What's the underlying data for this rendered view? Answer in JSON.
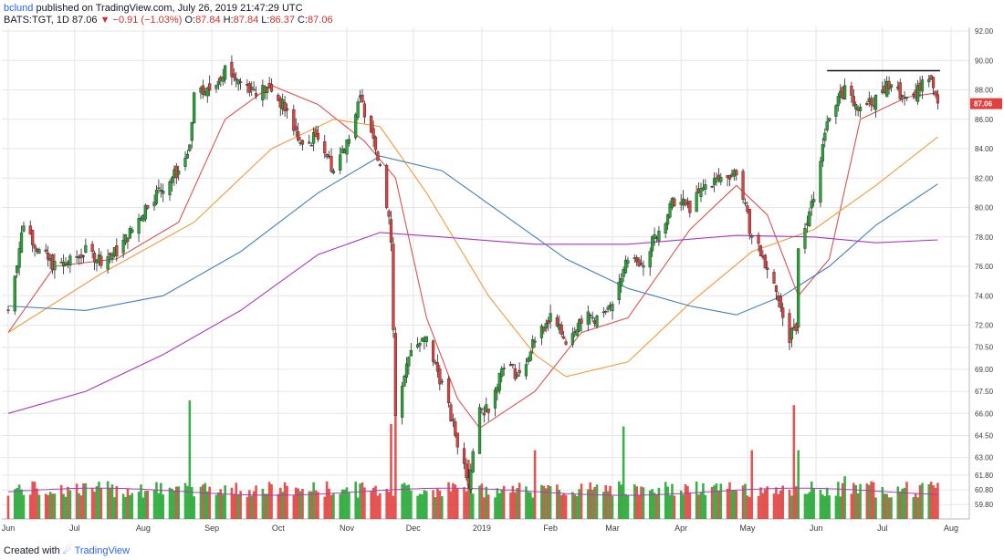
{
  "header": {
    "author": "bclund",
    "published_text": "published on TradingView.com, July 26, 2019 21:47:29 UTC",
    "symbol": "BATS:TGT, 1D",
    "last": "87.06",
    "change_arrow": "▼",
    "change": "−0.91 (−1.03%)",
    "o_label": "O:",
    "o_value": "87.84",
    "h_label": "H:",
    "h_value": "87.84",
    "l_label": "L:",
    "l_value": "86.37",
    "c_label": "C:",
    "c_value": "87.06"
  },
  "footer": {
    "created_with": "Created with",
    "brand": "TradingView"
  },
  "colors": {
    "up": "#26a634",
    "down": "#e0413f",
    "ma_fast": "#d9534f",
    "ma_mid": "#f39a3c",
    "ma_slow": "#3f7fbf",
    "ma_long": "#a936bf",
    "vol_ma": "#a93bb6",
    "grid": "#e6e6e6",
    "axis_text": "#3a3a3a",
    "price_tag": "#e0413f"
  },
  "chart_data": {
    "type": "candlestick",
    "symbol": "BATS:TGT",
    "interval": "1D",
    "y_ticks": [
      "92.00",
      "90.00",
      "88.00",
      "86.00",
      "84.00",
      "82.00",
      "80.00",
      "78.00",
      "76.00",
      "74.00",
      "72.00",
      "70.50",
      "69.00",
      "67.50",
      "66.00",
      "64.50",
      "63.00",
      "61.80",
      "60.80",
      "59.80"
    ],
    "x_ticks": [
      "Jun",
      "Jul",
      "Aug",
      "Sep",
      "Oct",
      "Nov",
      "Dec",
      "2019",
      "Feb",
      "Mar",
      "Apr",
      "May",
      "Jun",
      "Jul",
      "Aug"
    ],
    "last_price_label": "87.06",
    "resistance_level": 89.3,
    "price_anchors": [
      [
        "2018-06-01",
        73.0
      ],
      [
        "2018-06-08",
        79.0
      ],
      [
        "2018-06-15",
        77.0
      ],
      [
        "2018-06-22",
        76.0
      ],
      [
        "2018-06-29",
        76.3
      ],
      [
        "2018-07-06",
        77.0
      ],
      [
        "2018-07-13",
        76.5
      ],
      [
        "2018-07-20",
        77.0
      ],
      [
        "2018-07-27",
        78.5
      ],
      [
        "2018-08-03",
        80.3
      ],
      [
        "2018-08-10",
        81.5
      ],
      [
        "2018-08-17",
        82.5
      ],
      [
        "2018-08-22",
        84.0
      ],
      [
        "2018-08-24",
        87.5
      ],
      [
        "2018-08-31",
        88.0
      ],
      [
        "2018-09-07",
        89.5
      ],
      [
        "2018-09-14",
        88.5
      ],
      [
        "2018-09-21",
        88.0
      ],
      [
        "2018-09-28",
        88.0
      ],
      [
        "2018-10-05",
        86.5
      ],
      [
        "2018-10-12",
        84.0
      ],
      [
        "2018-10-19",
        85.0
      ],
      [
        "2018-10-26",
        82.5
      ],
      [
        "2018-11-02",
        85.0
      ],
      [
        "2018-11-07",
        87.3
      ],
      [
        "2018-11-12",
        85.5
      ],
      [
        "2018-11-16",
        83.0
      ],
      [
        "2018-11-21",
        78.0
      ],
      [
        "2018-11-23",
        66.0
      ],
      [
        "2018-11-30",
        70.5
      ],
      [
        "2018-12-07",
        71.0
      ],
      [
        "2018-12-14",
        68.0
      ],
      [
        "2018-12-21",
        64.0
      ],
      [
        "2018-12-26",
        61.5
      ],
      [
        "2018-12-31",
        66.0
      ],
      [
        "2019-01-04",
        66.5
      ],
      [
        "2019-01-11",
        69.5
      ],
      [
        "2019-01-18",
        68.5
      ],
      [
        "2019-01-25",
        71.0
      ],
      [
        "2019-02-01",
        72.5
      ],
      [
        "2019-02-08",
        71.0
      ],
      [
        "2019-02-15",
        72.5
      ],
      [
        "2019-02-22",
        72.5
      ],
      [
        "2019-03-01",
        73.0
      ],
      [
        "2019-03-06",
        76.0
      ],
      [
        "2019-03-15",
        76.5
      ],
      [
        "2019-03-22",
        78.5
      ],
      [
        "2019-03-29",
        80.5
      ],
      [
        "2019-04-05",
        80.0
      ],
      [
        "2019-04-12",
        81.5
      ],
      [
        "2019-04-19",
        82.0
      ],
      [
        "2019-04-26",
        82.5
      ],
      [
        "2019-05-03",
        78.0
      ],
      [
        "2019-05-10",
        76.0
      ],
      [
        "2019-05-15",
        74.0
      ],
      [
        "2019-05-20",
        71.0
      ],
      [
        "2019-05-23",
        72.0
      ],
      [
        "2019-05-24",
        77.0
      ],
      [
        "2019-05-31",
        81.0
      ],
      [
        "2019-06-07",
        86.5
      ],
      [
        "2019-06-14",
        88.0
      ],
      [
        "2019-06-21",
        86.5
      ],
      [
        "2019-06-28",
        87.5
      ],
      [
        "2019-07-05",
        88.5
      ],
      [
        "2019-07-12",
        87.0
      ],
      [
        "2019-07-19",
        88.5
      ],
      [
        "2019-07-24",
        88.5
      ],
      [
        "2019-07-25",
        87.9
      ],
      [
        "2019-07-26",
        87.06
      ]
    ],
    "moving_averages": [
      {
        "key": "ma_fast",
        "points": [
          [
            "2018-06-01",
            71.5
          ],
          [
            "2018-06-22",
            76.0
          ],
          [
            "2018-07-20",
            76.5
          ],
          [
            "2018-08-17",
            79.0
          ],
          [
            "2018-09-07",
            86.0
          ],
          [
            "2018-09-28",
            88.3
          ],
          [
            "2018-10-19",
            87.0
          ],
          [
            "2018-11-09",
            84.5
          ],
          [
            "2018-11-23",
            82.0
          ],
          [
            "2018-12-07",
            72.5
          ],
          [
            "2018-12-21",
            67.0
          ],
          [
            "2018-12-31",
            65.0
          ],
          [
            "2019-01-25",
            67.5
          ],
          [
            "2019-02-15",
            71.5
          ],
          [
            "2019-03-08",
            72.5
          ],
          [
            "2019-04-05",
            78.5
          ],
          [
            "2019-04-26",
            81.5
          ],
          [
            "2019-05-10",
            79.5
          ],
          [
            "2019-05-24",
            74.0
          ],
          [
            "2019-06-07",
            76.5
          ],
          [
            "2019-06-21",
            86.0
          ],
          [
            "2019-07-12",
            87.5
          ],
          [
            "2019-07-26",
            87.8
          ]
        ]
      },
      {
        "key": "ma_mid",
        "points": [
          [
            "2018-06-01",
            71.5
          ],
          [
            "2018-07-13",
            75.5
          ],
          [
            "2018-08-24",
            79.0
          ],
          [
            "2018-09-28",
            84.0
          ],
          [
            "2018-10-26",
            86.0
          ],
          [
            "2018-11-16",
            85.5
          ],
          [
            "2018-12-07",
            81.0
          ],
          [
            "2019-01-04",
            74.0
          ],
          [
            "2019-01-25",
            70.0
          ],
          [
            "2019-02-08",
            68.5
          ],
          [
            "2019-03-08",
            69.5
          ],
          [
            "2019-04-05",
            73.5
          ],
          [
            "2019-05-03",
            77.0
          ],
          [
            "2019-05-31",
            78.5
          ],
          [
            "2019-06-28",
            81.5
          ],
          [
            "2019-07-26",
            84.8
          ]
        ]
      },
      {
        "key": "ma_slow",
        "points": [
          [
            "2018-06-01",
            73.3
          ],
          [
            "2018-07-06",
            73.0
          ],
          [
            "2018-08-10",
            74.0
          ],
          [
            "2018-09-14",
            77.0
          ],
          [
            "2018-10-19",
            81.0
          ],
          [
            "2018-11-16",
            83.5
          ],
          [
            "2018-12-14",
            82.5
          ],
          [
            "2019-01-11",
            79.5
          ],
          [
            "2019-02-08",
            76.5
          ],
          [
            "2019-03-08",
            74.5
          ],
          [
            "2019-04-05",
            73.3
          ],
          [
            "2019-04-26",
            72.7
          ],
          [
            "2019-05-17",
            74.0
          ],
          [
            "2019-06-07",
            76.0
          ],
          [
            "2019-06-28",
            78.8
          ],
          [
            "2019-07-26",
            81.6
          ]
        ]
      },
      {
        "key": "ma_long",
        "points": [
          [
            "2018-06-01",
            66.0
          ],
          [
            "2018-07-06",
            67.5
          ],
          [
            "2018-08-10",
            70.0
          ],
          [
            "2018-09-14",
            73.0
          ],
          [
            "2018-10-19",
            76.8
          ],
          [
            "2018-11-16",
            78.3
          ],
          [
            "2018-12-14",
            78.0
          ],
          [
            "2019-01-25",
            77.5
          ],
          [
            "2019-03-08",
            77.5
          ],
          [
            "2019-04-26",
            78.1
          ],
          [
            "2019-05-31",
            78.0
          ],
          [
            "2019-06-28",
            77.6
          ],
          [
            "2019-07-26",
            77.8
          ]
        ]
      }
    ],
    "volume_spikes": [
      [
        "2018-08-22",
        5.0
      ],
      [
        "2018-11-21",
        4.0
      ],
      [
        "2018-11-23",
        4.6
      ],
      [
        "2018-12-26",
        2.5
      ],
      [
        "2019-01-25",
        2.9
      ],
      [
        "2019-03-06",
        3.9
      ],
      [
        "2019-05-03",
        2.9
      ],
      [
        "2019-05-22",
        4.8
      ],
      [
        "2019-05-24",
        2.9
      ],
      [
        "2019-06-14",
        1.8
      ]
    ]
  }
}
